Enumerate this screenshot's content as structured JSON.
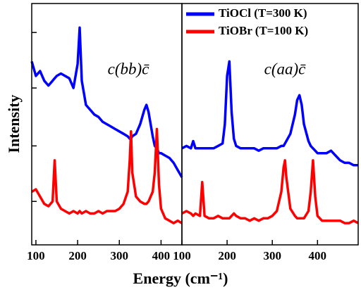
{
  "chart_data": [
    {
      "type": "line",
      "ylabel": "Intensity",
      "xlabel": "Energy (cm⁻¹)",
      "annotation": "c(bb)c̄",
      "x": [
        90,
        100,
        110,
        120,
        130,
        140,
        145,
        150,
        160,
        170,
        180,
        190,
        200,
        205,
        210,
        220,
        230,
        240,
        250,
        260,
        270,
        280,
        290,
        300,
        310,
        320,
        325,
        328,
        331,
        340,
        350,
        360,
        365,
        370,
        380,
        385,
        390,
        395,
        400,
        410,
        420,
        430,
        440,
        450
      ],
      "series": [
        {
          "name": "TiOCl (T=300 K)",
          "color": "#0000ff",
          "values": [
            76,
            70,
            72,
            68,
            66,
            68,
            69,
            70,
            71,
            70,
            69,
            65,
            75,
            90,
            68,
            58,
            56,
            54,
            53,
            51,
            50,
            49,
            48,
            47,
            46,
            45,
            44,
            44,
            45,
            46,
            50,
            56,
            58,
            55,
            45,
            41,
            40,
            38,
            38,
            37,
            36,
            34,
            31,
            28
          ]
        },
        {
          "name": "TiOBr (T=100 K)",
          "color": "#ff0000",
          "values": [
            22,
            23,
            20,
            17,
            16,
            18,
            35,
            18,
            15,
            14,
            13,
            14,
            13,
            14,
            13,
            14,
            13,
            13,
            14,
            13,
            14,
            14,
            14,
            15,
            17,
            22,
            35,
            47,
            30,
            20,
            18,
            17,
            17,
            18,
            22,
            30,
            48,
            25,
            15,
            11,
            10,
            9,
            10,
            9
          ]
        }
      ],
      "xlim": [
        90,
        450
      ],
      "xticks": [
        100,
        200,
        300,
        400
      ],
      "ylim": [
        0,
        100
      ],
      "yticks": [
        18,
        41,
        65,
        88
      ]
    },
    {
      "type": "line",
      "annotation": "c(aa)c̄",
      "x": [
        100,
        110,
        120,
        125,
        130,
        140,
        145,
        150,
        160,
        170,
        180,
        190,
        195,
        200,
        205,
        210,
        215,
        220,
        230,
        240,
        250,
        260,
        270,
        280,
        290,
        300,
        310,
        320,
        325,
        328,
        331,
        340,
        350,
        355,
        360,
        365,
        370,
        380,
        385,
        390,
        395,
        400,
        410,
        420,
        430,
        440,
        450,
        460,
        470,
        480,
        490
      ],
      "series": [
        {
          "color": "#0000ff",
          "values": [
            40,
            41,
            40,
            43,
            40,
            40,
            40,
            40,
            40,
            40,
            41,
            42,
            50,
            70,
            76,
            55,
            44,
            41,
            40,
            40,
            40,
            40,
            39,
            40,
            40,
            40,
            40,
            41,
            41,
            42,
            43,
            46,
            54,
            60,
            62,
            58,
            50,
            43,
            41,
            40,
            39,
            38,
            38,
            38,
            39,
            37,
            35,
            34,
            34,
            33,
            33
          ]
        },
        {
          "color": "#ff0000",
          "values": [
            13,
            14,
            13,
            12,
            13,
            12,
            26,
            12,
            11,
            11,
            12,
            11,
            11,
            11,
            11,
            12,
            13,
            12,
            11,
            11,
            10,
            11,
            10,
            11,
            11,
            12,
            14,
            22,
            32,
            35,
            28,
            15,
            12,
            11,
            11,
            11,
            11,
            14,
            22,
            35,
            20,
            12,
            10,
            10,
            10,
            10,
            10,
            9,
            9,
            10,
            9
          ]
        }
      ],
      "xlim": [
        100,
        490
      ],
      "xticks": [
        100,
        200,
        300,
        400
      ],
      "ylim": [
        0,
        100
      ]
    }
  ]
}
